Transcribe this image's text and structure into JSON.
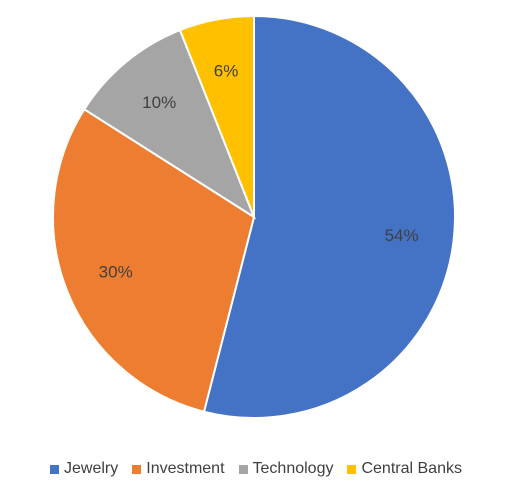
{
  "chart_data": {
    "type": "pie",
    "categories": [
      "Jewelry",
      "Investment",
      "Technology",
      "Central Banks"
    ],
    "values": [
      54,
      30,
      10,
      6
    ],
    "data_labels": [
      "54%",
      "30%",
      "10%",
      "6%"
    ],
    "colors": [
      "#4472C4",
      "#ED7D31",
      "#A5A5A5",
      "#FFC000"
    ],
    "start_angle_deg": 0,
    "direction": "clockwise",
    "legend_position": "bottom"
  }
}
